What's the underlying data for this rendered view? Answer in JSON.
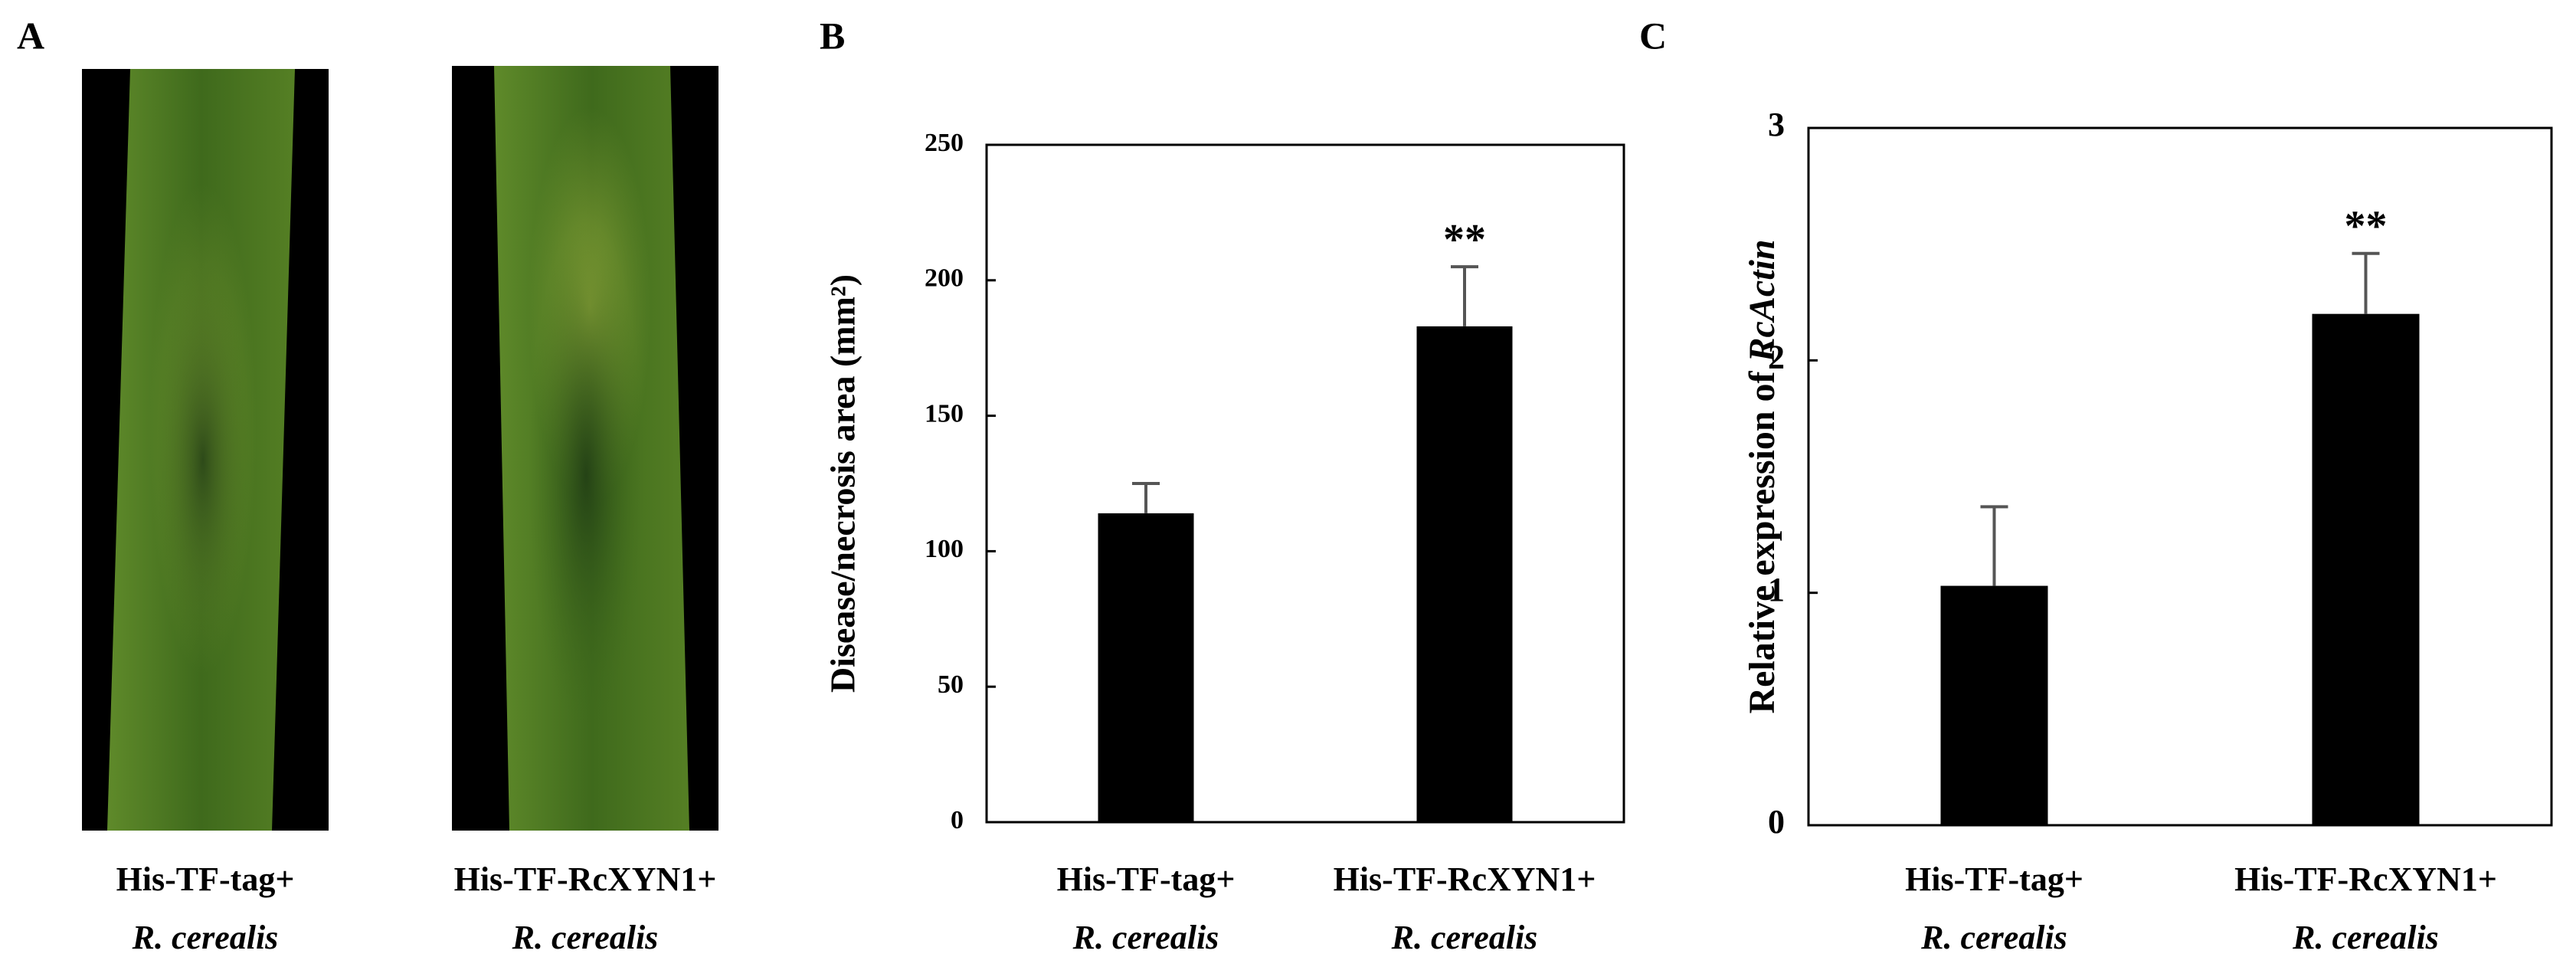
{
  "panel_a": {
    "panel_label": "A",
    "captions": [
      {
        "line1": "His-TF-tag+",
        "line2": "R. cerealis"
      },
      {
        "line1": "His-TF-RcXYN1+",
        "line2": "R. cerealis"
      }
    ]
  },
  "chart_data": [
    {
      "type": "bar",
      "panel_label": "B",
      "ylabel": "Disease/necrosis area (mm²)",
      "categories": [
        "His-TF-tag+",
        "His-TF-RcXYN1+"
      ],
      "category_sublabels": [
        "R. cerealis",
        "R. cerealis"
      ],
      "values": [
        114,
        183
      ],
      "errors": [
        11,
        22
      ],
      "annotations": [
        null,
        "**"
      ],
      "color": "#000000",
      "ylim": [
        0,
        250
      ],
      "yticks": [
        0,
        50,
        100,
        150,
        200,
        250
      ],
      "grid": false
    },
    {
      "type": "bar",
      "panel_label": "C",
      "ylabel_parts": [
        {
          "text": "Relative expression of ",
          "italic": false
        },
        {
          "text": "RcActin",
          "italic": true
        }
      ],
      "categories": [
        "His-TF-tag+",
        "His-TF-RcXYN1+"
      ],
      "category_sublabels": [
        "R. cerealis",
        "R. cerealis"
      ],
      "values": [
        1.03,
        2.2
      ],
      "errors": [
        0.34,
        0.26
      ],
      "annotations": [
        null,
        "**"
      ],
      "color": "#000000",
      "ylim": [
        0,
        3
      ],
      "yticks": [
        0,
        1,
        2,
        3
      ],
      "grid": false
    }
  ]
}
